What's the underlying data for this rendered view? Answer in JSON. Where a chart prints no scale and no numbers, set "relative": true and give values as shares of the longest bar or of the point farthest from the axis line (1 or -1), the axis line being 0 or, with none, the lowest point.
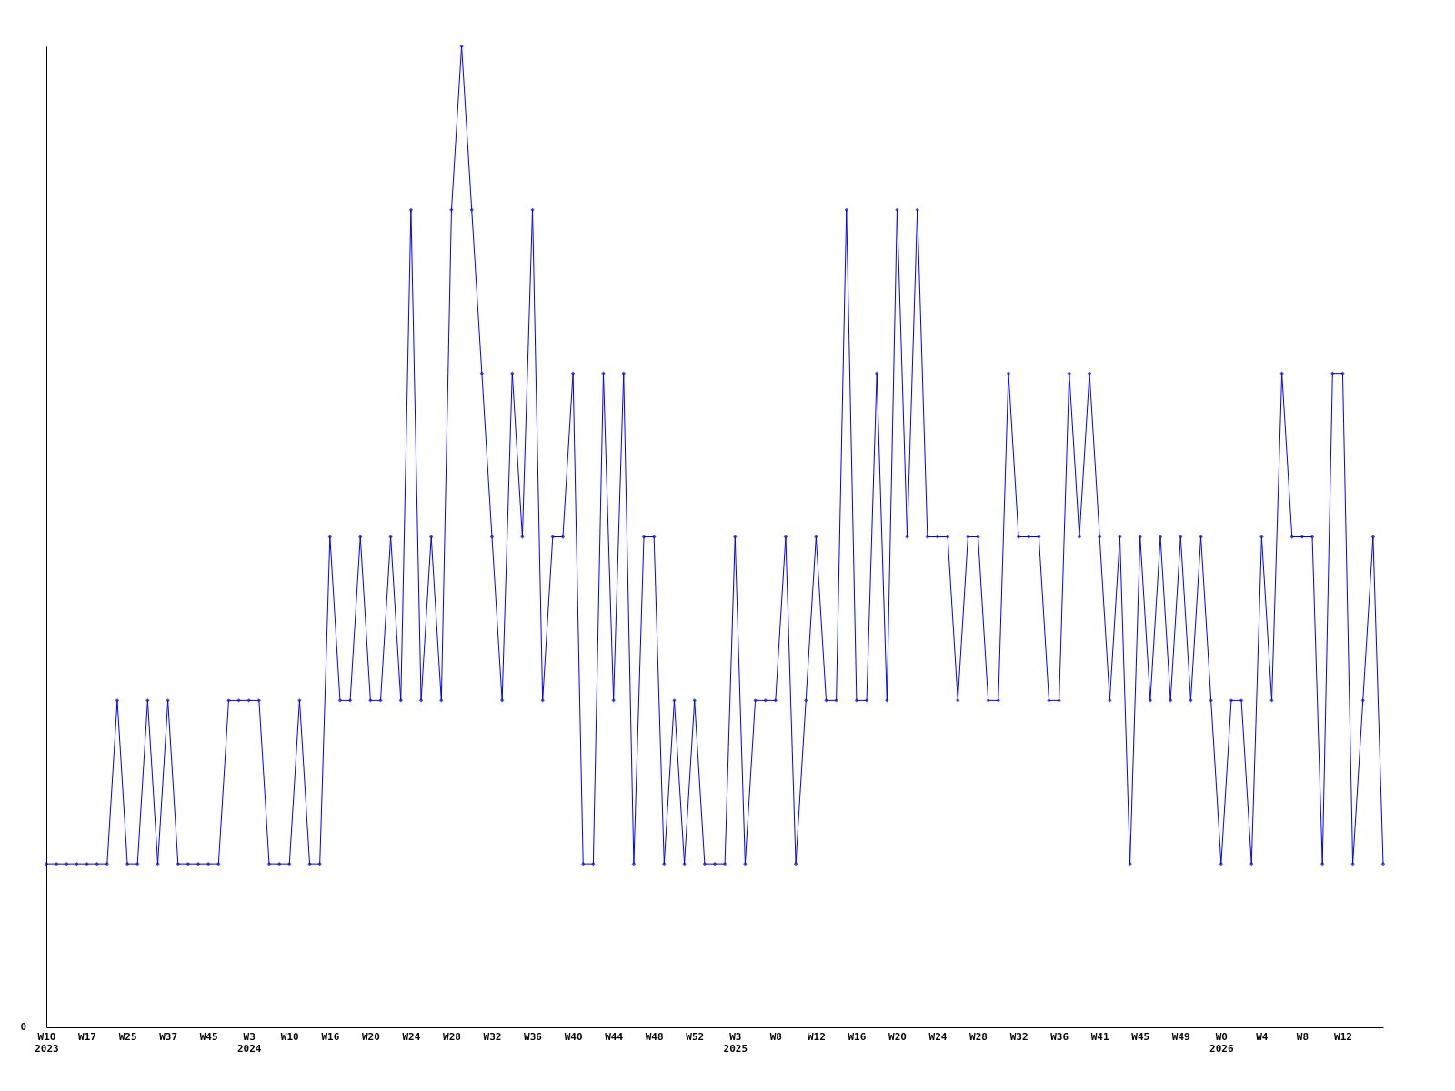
{
  "chart_data": {
    "type": "line",
    "relative": true,
    "color": "#0000ff",
    "marker": "diamond",
    "grid": false,
    "categories": [
      "W10\n2023",
      null,
      null,
      null,
      "W17",
      null,
      null,
      null,
      "W25",
      null,
      null,
      null,
      "W37",
      null,
      null,
      null,
      "W45",
      null,
      null,
      null,
      "W3\n2024",
      null,
      null,
      null,
      "W10",
      null,
      null,
      null,
      "W16",
      null,
      null,
      null,
      "W20",
      null,
      null,
      null,
      "W24",
      null,
      null,
      null,
      "W28",
      null,
      null,
      null,
      "W32",
      null,
      null,
      null,
      "W36",
      null,
      null,
      null,
      "W40",
      null,
      null,
      null,
      "W44",
      null,
      null,
      null,
      "W48",
      null,
      null,
      null,
      "W52",
      null,
      null,
      null,
      "W3\n2025",
      null,
      null,
      null,
      "W8",
      null,
      null,
      null,
      "W12",
      null,
      null,
      null,
      "W16",
      null,
      null,
      null,
      "W20",
      null,
      null,
      null,
      "W24",
      null,
      null,
      null,
      "W28",
      null,
      null,
      null,
      "W32",
      null,
      null,
      null,
      "W36",
      null,
      null,
      null,
      "W41",
      null,
      null,
      null,
      "W45",
      null,
      null,
      null,
      "W49",
      null,
      null,
      null,
      "W0\n2026",
      null,
      null,
      null,
      "W4",
      null,
      null,
      null,
      "W8",
      null,
      null,
      null,
      "W12",
      null,
      null,
      null,
      null
    ],
    "values": [
      0.1667,
      0.1667,
      0.1667,
      0.1667,
      0.1667,
      0.1667,
      0.1667,
      0.3333,
      0.1667,
      0.1667,
      0.3333,
      0.1667,
      0.3333,
      0.1667,
      0.1667,
      0.1667,
      0.1667,
      0.1667,
      0.3333,
      0.3333,
      0.3333,
      0.3333,
      0.1667,
      0.1667,
      0.1667,
      0.3333,
      0.1667,
      0.1667,
      0.5,
      0.3333,
      0.3333,
      0.5,
      0.3333,
      0.3333,
      0.5,
      0.3333,
      0.8333,
      0.3333,
      0.5,
      0.3333,
      0.8333,
      1,
      0.8333,
      0.6667,
      0.5,
      0.3333,
      0.6667,
      0.5,
      0.8333,
      0.3333,
      0.5,
      0.5,
      0.6667,
      0.1667,
      0.1667,
      0.6667,
      0.3333,
      0.6667,
      0.1667,
      0.5,
      0.5,
      0.1667,
      0.3333,
      0.1667,
      0.3333,
      0.1667,
      0.1667,
      0.1667,
      0.5,
      0.1667,
      0.3333,
      0.3333,
      0.3333,
      0.5,
      0.1667,
      0.3333,
      0.5,
      0.3333,
      0.3333,
      0.8333,
      0.3333,
      0.3333,
      0.6667,
      0.3333,
      0.8333,
      0.5,
      0.8333,
      0.5,
      0.5,
      0.5,
      0.3333,
      0.5,
      0.5,
      0.3333,
      0.3333,
      0.6667,
      0.5,
      0.5,
      0.5,
      0.3333,
      0.3333,
      0.6667,
      0.5,
      0.6667,
      0.5,
      0.3333,
      0.5,
      0.1667,
      0.5,
      0.3333,
      0.5,
      0.3333,
      0.5,
      0.3333,
      0.5,
      0.3333,
      0.1667,
      0.3333,
      0.3333,
      0.1667,
      0.5,
      0.3333,
      0.6667,
      0.5,
      0.5,
      0.5,
      0.1667,
      0.6667,
      0.6667,
      0.1667,
      0.3333,
      0.5,
      0.1667
    ],
    "annotations": [
      "0"
    ]
  }
}
